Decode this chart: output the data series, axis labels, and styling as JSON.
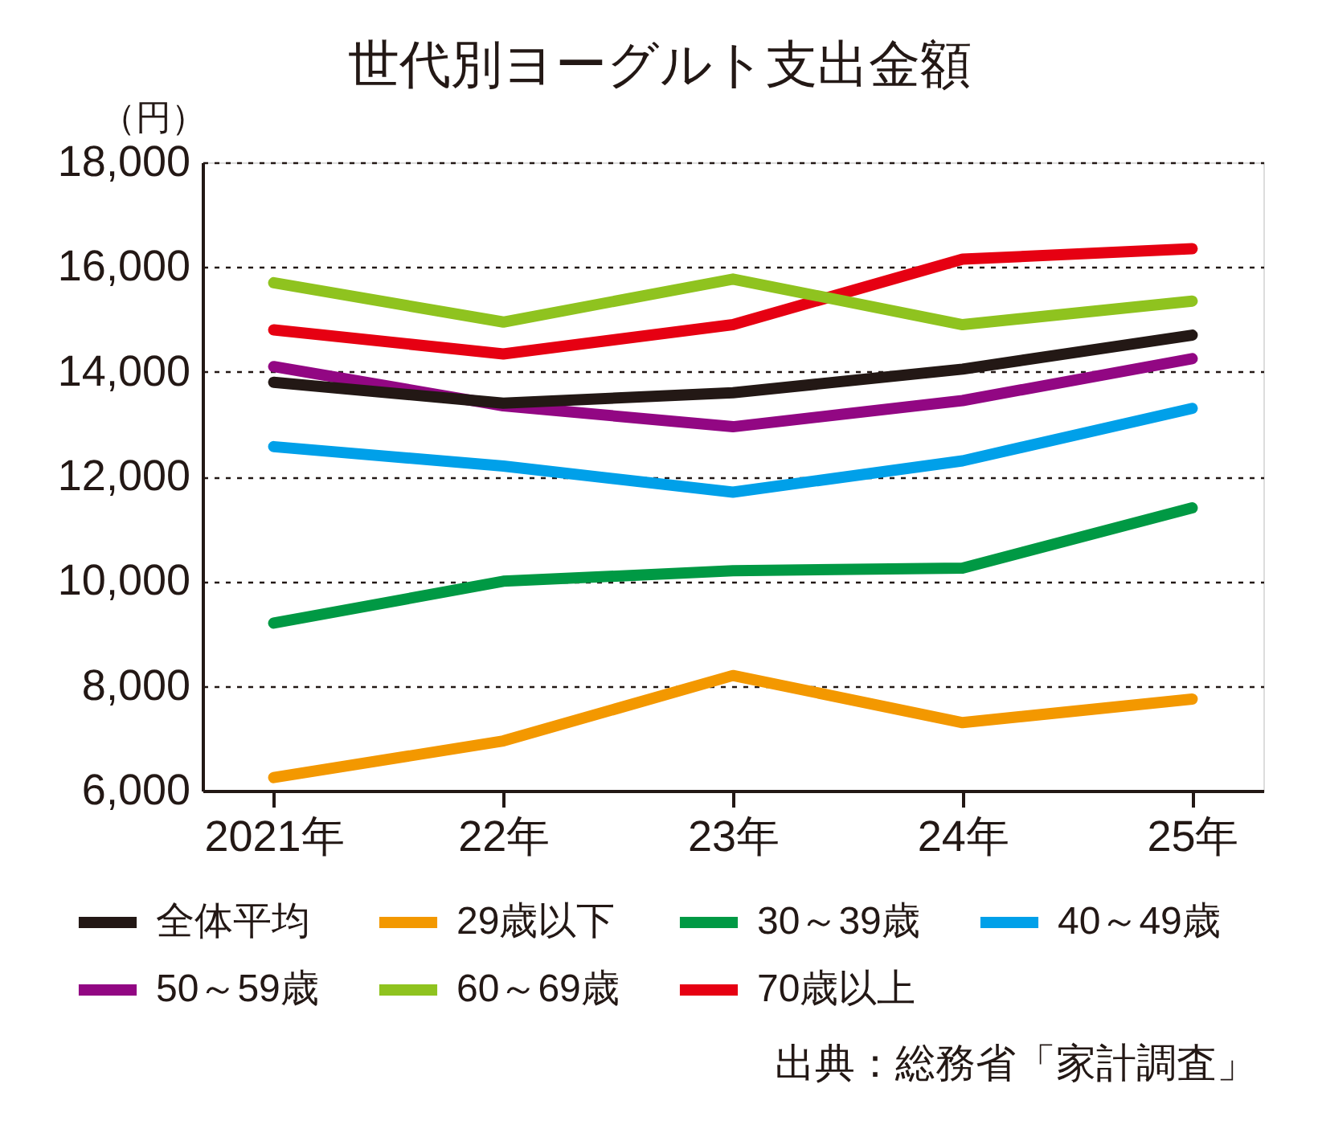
{
  "chart_data": {
    "type": "line",
    "title": "世代別ヨーグルト支出金額",
    "ylabel": "（円）",
    "categories": [
      "2021年",
      "22年",
      "23年",
      "24年",
      "25年"
    ],
    "ylim": [
      6000,
      18000
    ],
    "yticks": [
      {
        "value": 6000,
        "label": "6,000"
      },
      {
        "value": 8000,
        "label": "8,000"
      },
      {
        "value": 10000,
        "label": "10,000"
      },
      {
        "value": 12000,
        "label": "12,000"
      },
      {
        "value": 14000,
        "label": "14,000"
      },
      {
        "value": 16000,
        "label": "16,000"
      },
      {
        "value": 18000,
        "label": "18,000"
      }
    ],
    "grid": "y",
    "legend": "bottom",
    "line_style": "solid",
    "series": [
      {
        "name": "全体平均",
        "color": "#231815",
        "values": [
          13800,
          13400,
          13600,
          14050,
          14700
        ]
      },
      {
        "name": "29歳以下",
        "color": "#f39800",
        "values": [
          6250,
          6950,
          8200,
          7300,
          7750
        ]
      },
      {
        "name": "30～39歳",
        "color": "#009944",
        "values": [
          9200,
          10000,
          10200,
          10250,
          11400
        ]
      },
      {
        "name": "40～49歳",
        "color": "#00a0e9",
        "values": [
          12570,
          12200,
          11700,
          12300,
          13300
        ]
      },
      {
        "name": "50～59歳",
        "color": "#920783",
        "values": [
          14100,
          13350,
          12950,
          13450,
          14250
        ]
      },
      {
        "name": "60～69歳",
        "color": "#8fc31f",
        "values": [
          15700,
          14950,
          15770,
          14900,
          15350
        ]
      },
      {
        "name": "70歳以上",
        "color": "#e60012",
        "values": [
          14800,
          14340,
          14900,
          16150,
          16350
        ]
      }
    ],
    "annotations": [
      "出典：総務省「家計調査」"
    ]
  }
}
